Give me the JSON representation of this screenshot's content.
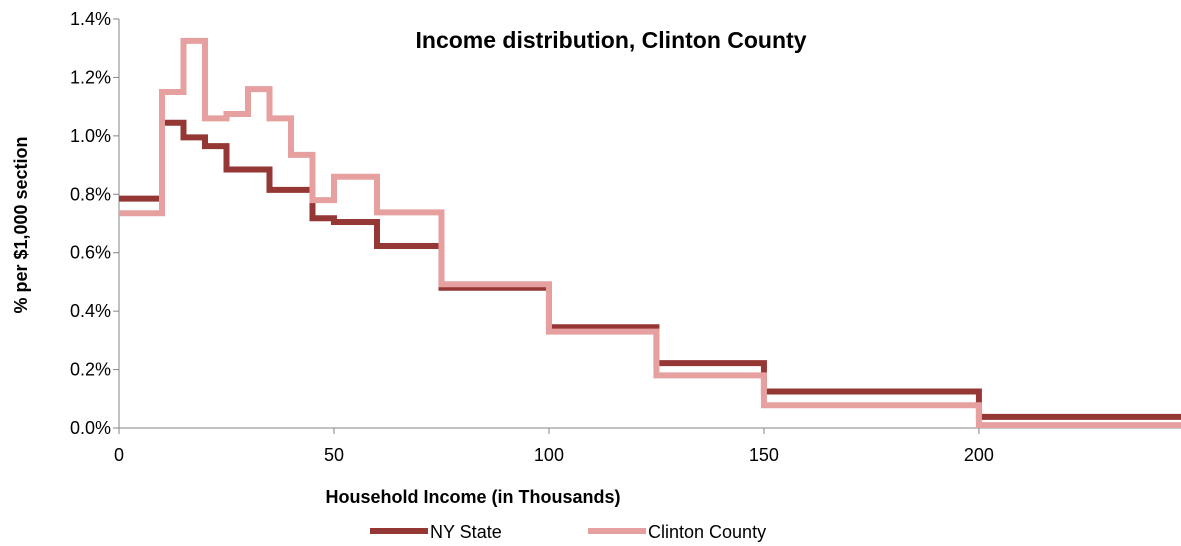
{
  "chart_data": {
    "type": "line",
    "step": true,
    "title": "Income distribution, Clinton County",
    "xlabel": "Household  Income  (in Thousands)",
    "ylabel": "% per $1,000 section",
    "xlim": [
      0,
      247
    ],
    "ylim": [
      0,
      0.014
    ],
    "xticks": [
      0,
      50,
      100,
      150,
      200
    ],
    "xtick_labels": [
      "0",
      "50",
      "100",
      "150",
      "200"
    ],
    "yticks": [
      0,
      0.002,
      0.004,
      0.006,
      0.008,
      0.01,
      0.012,
      0.014
    ],
    "ytick_labels": [
      "0.0%",
      "0.2%",
      "0.4%",
      "0.6%",
      "0.8%",
      "1.0%",
      "1.2%",
      "1.4%"
    ],
    "grid": false,
    "legend_position": "bottom",
    "bin_edges": [
      0,
      10,
      15,
      20,
      25,
      30,
      35,
      40,
      45,
      50,
      60,
      75,
      100,
      125,
      150,
      200,
      247
    ],
    "series": [
      {
        "name": "NY State",
        "color": "#953735",
        "values": [
          0.00785,
          0.01045,
          0.00995,
          0.00965,
          0.00885,
          0.00885,
          0.00815,
          0.00815,
          0.00718,
          0.00705,
          0.00623,
          0.0048,
          0.00345,
          0.00222,
          0.00125,
          0.00038
        ]
      },
      {
        "name": "Clinton County",
        "color": "#e6a0a0",
        "values": [
          0.00735,
          0.0115,
          0.01325,
          0.0106,
          0.01075,
          0.0116,
          0.0106,
          0.00935,
          0.0078,
          0.0086,
          0.00738,
          0.00492,
          0.0033,
          0.0018,
          0.00078,
          0.0001
        ]
      }
    ]
  }
}
